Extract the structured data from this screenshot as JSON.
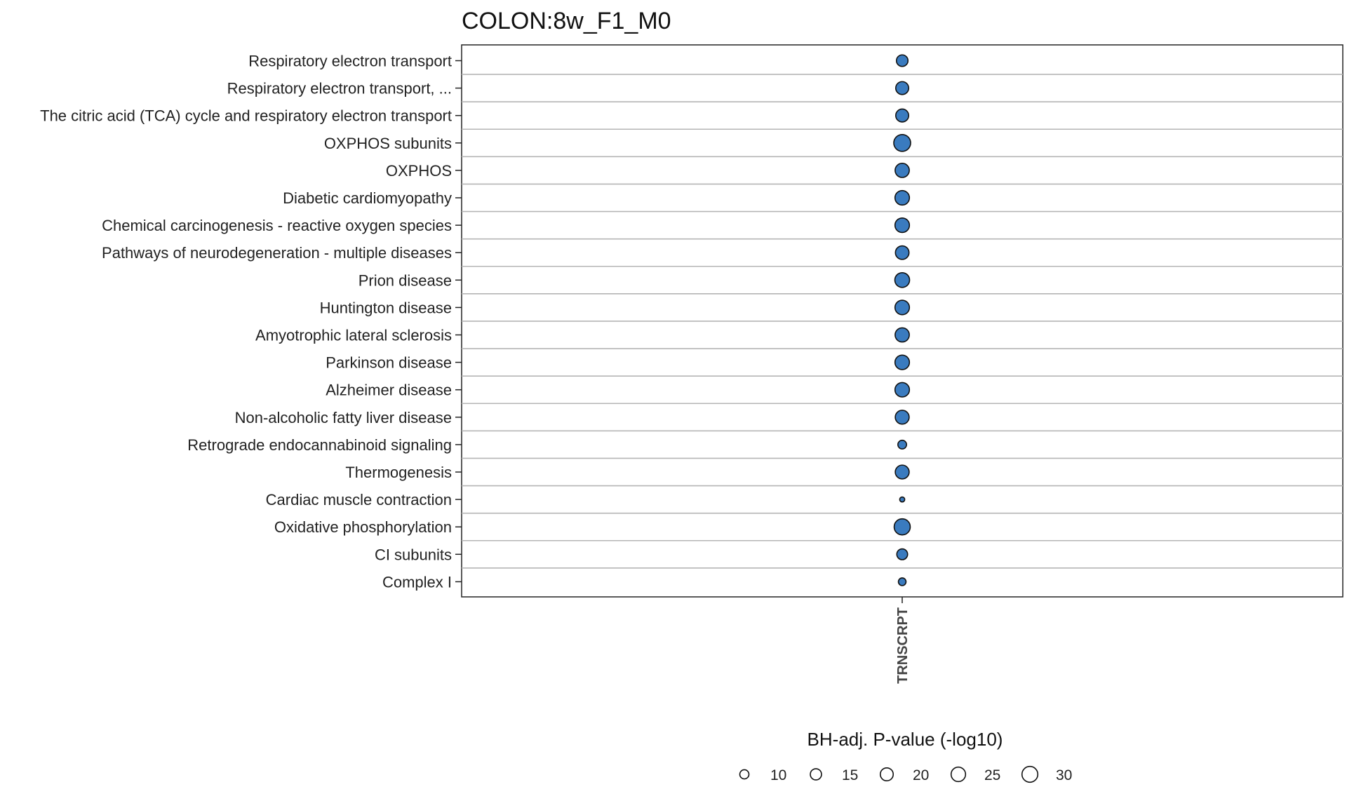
{
  "chart_data": {
    "type": "scatter",
    "title": "COLON:8w_F1_M0",
    "x_categories": [
      "TRNSCRPT"
    ],
    "size_legend": {
      "title": "BH-adj. P-value (-log10)",
      "values": [
        10,
        15,
        20,
        25,
        30
      ]
    },
    "point_fill": "#3a7bbf",
    "point_stroke": "#111111",
    "grid": true,
    "legend_position": "bottom",
    "rows": [
      {
        "label": "Respiratory electron transport",
        "x": "TRNSCRPT",
        "size": 16
      },
      {
        "label": "Respiratory electron transport, ...",
        "x": "TRNSCRPT",
        "size": 20
      },
      {
        "label": "The citric acid (TCA) cycle and respiratory electron transport",
        "x": "TRNSCRPT",
        "size": 20
      },
      {
        "label": "OXPHOS subunits",
        "x": "TRNSCRPT",
        "size": 34
      },
      {
        "label": "OXPHOS",
        "x": "TRNSCRPT",
        "size": 24
      },
      {
        "label": "Diabetic cardiomyopathy",
        "x": "TRNSCRPT",
        "size": 25
      },
      {
        "label": "Chemical carcinogenesis - reactive oxygen species",
        "x": "TRNSCRPT",
        "size": 25
      },
      {
        "label": "Pathways of neurodegeneration - multiple diseases",
        "x": "TRNSCRPT",
        "size": 22
      },
      {
        "label": "Prion disease",
        "x": "TRNSCRPT",
        "size": 26
      },
      {
        "label": "Huntington disease",
        "x": "TRNSCRPT",
        "size": 25
      },
      {
        "label": "Amyotrophic lateral sclerosis",
        "x": "TRNSCRPT",
        "size": 24
      },
      {
        "label": "Parkinson disease",
        "x": "TRNSCRPT",
        "size": 25
      },
      {
        "label": "Alzheimer disease",
        "x": "TRNSCRPT",
        "size": 25
      },
      {
        "label": "Non-alcoholic fatty liver disease",
        "x": "TRNSCRPT",
        "size": 23
      },
      {
        "label": "Retrograde endocannabinoid signaling",
        "x": "TRNSCRPT",
        "size": 9
      },
      {
        "label": "Thermogenesis",
        "x": "TRNSCRPT",
        "size": 23
      },
      {
        "label": "Cardiac muscle contraction",
        "x": "TRNSCRPT",
        "size": 3
      },
      {
        "label": "Oxidative phosphorylation",
        "x": "TRNSCRPT",
        "size": 31
      },
      {
        "label": "CI subunits",
        "x": "TRNSCRPT",
        "size": 14
      },
      {
        "label": "Complex I",
        "x": "TRNSCRPT",
        "size": 7
      }
    ]
  }
}
